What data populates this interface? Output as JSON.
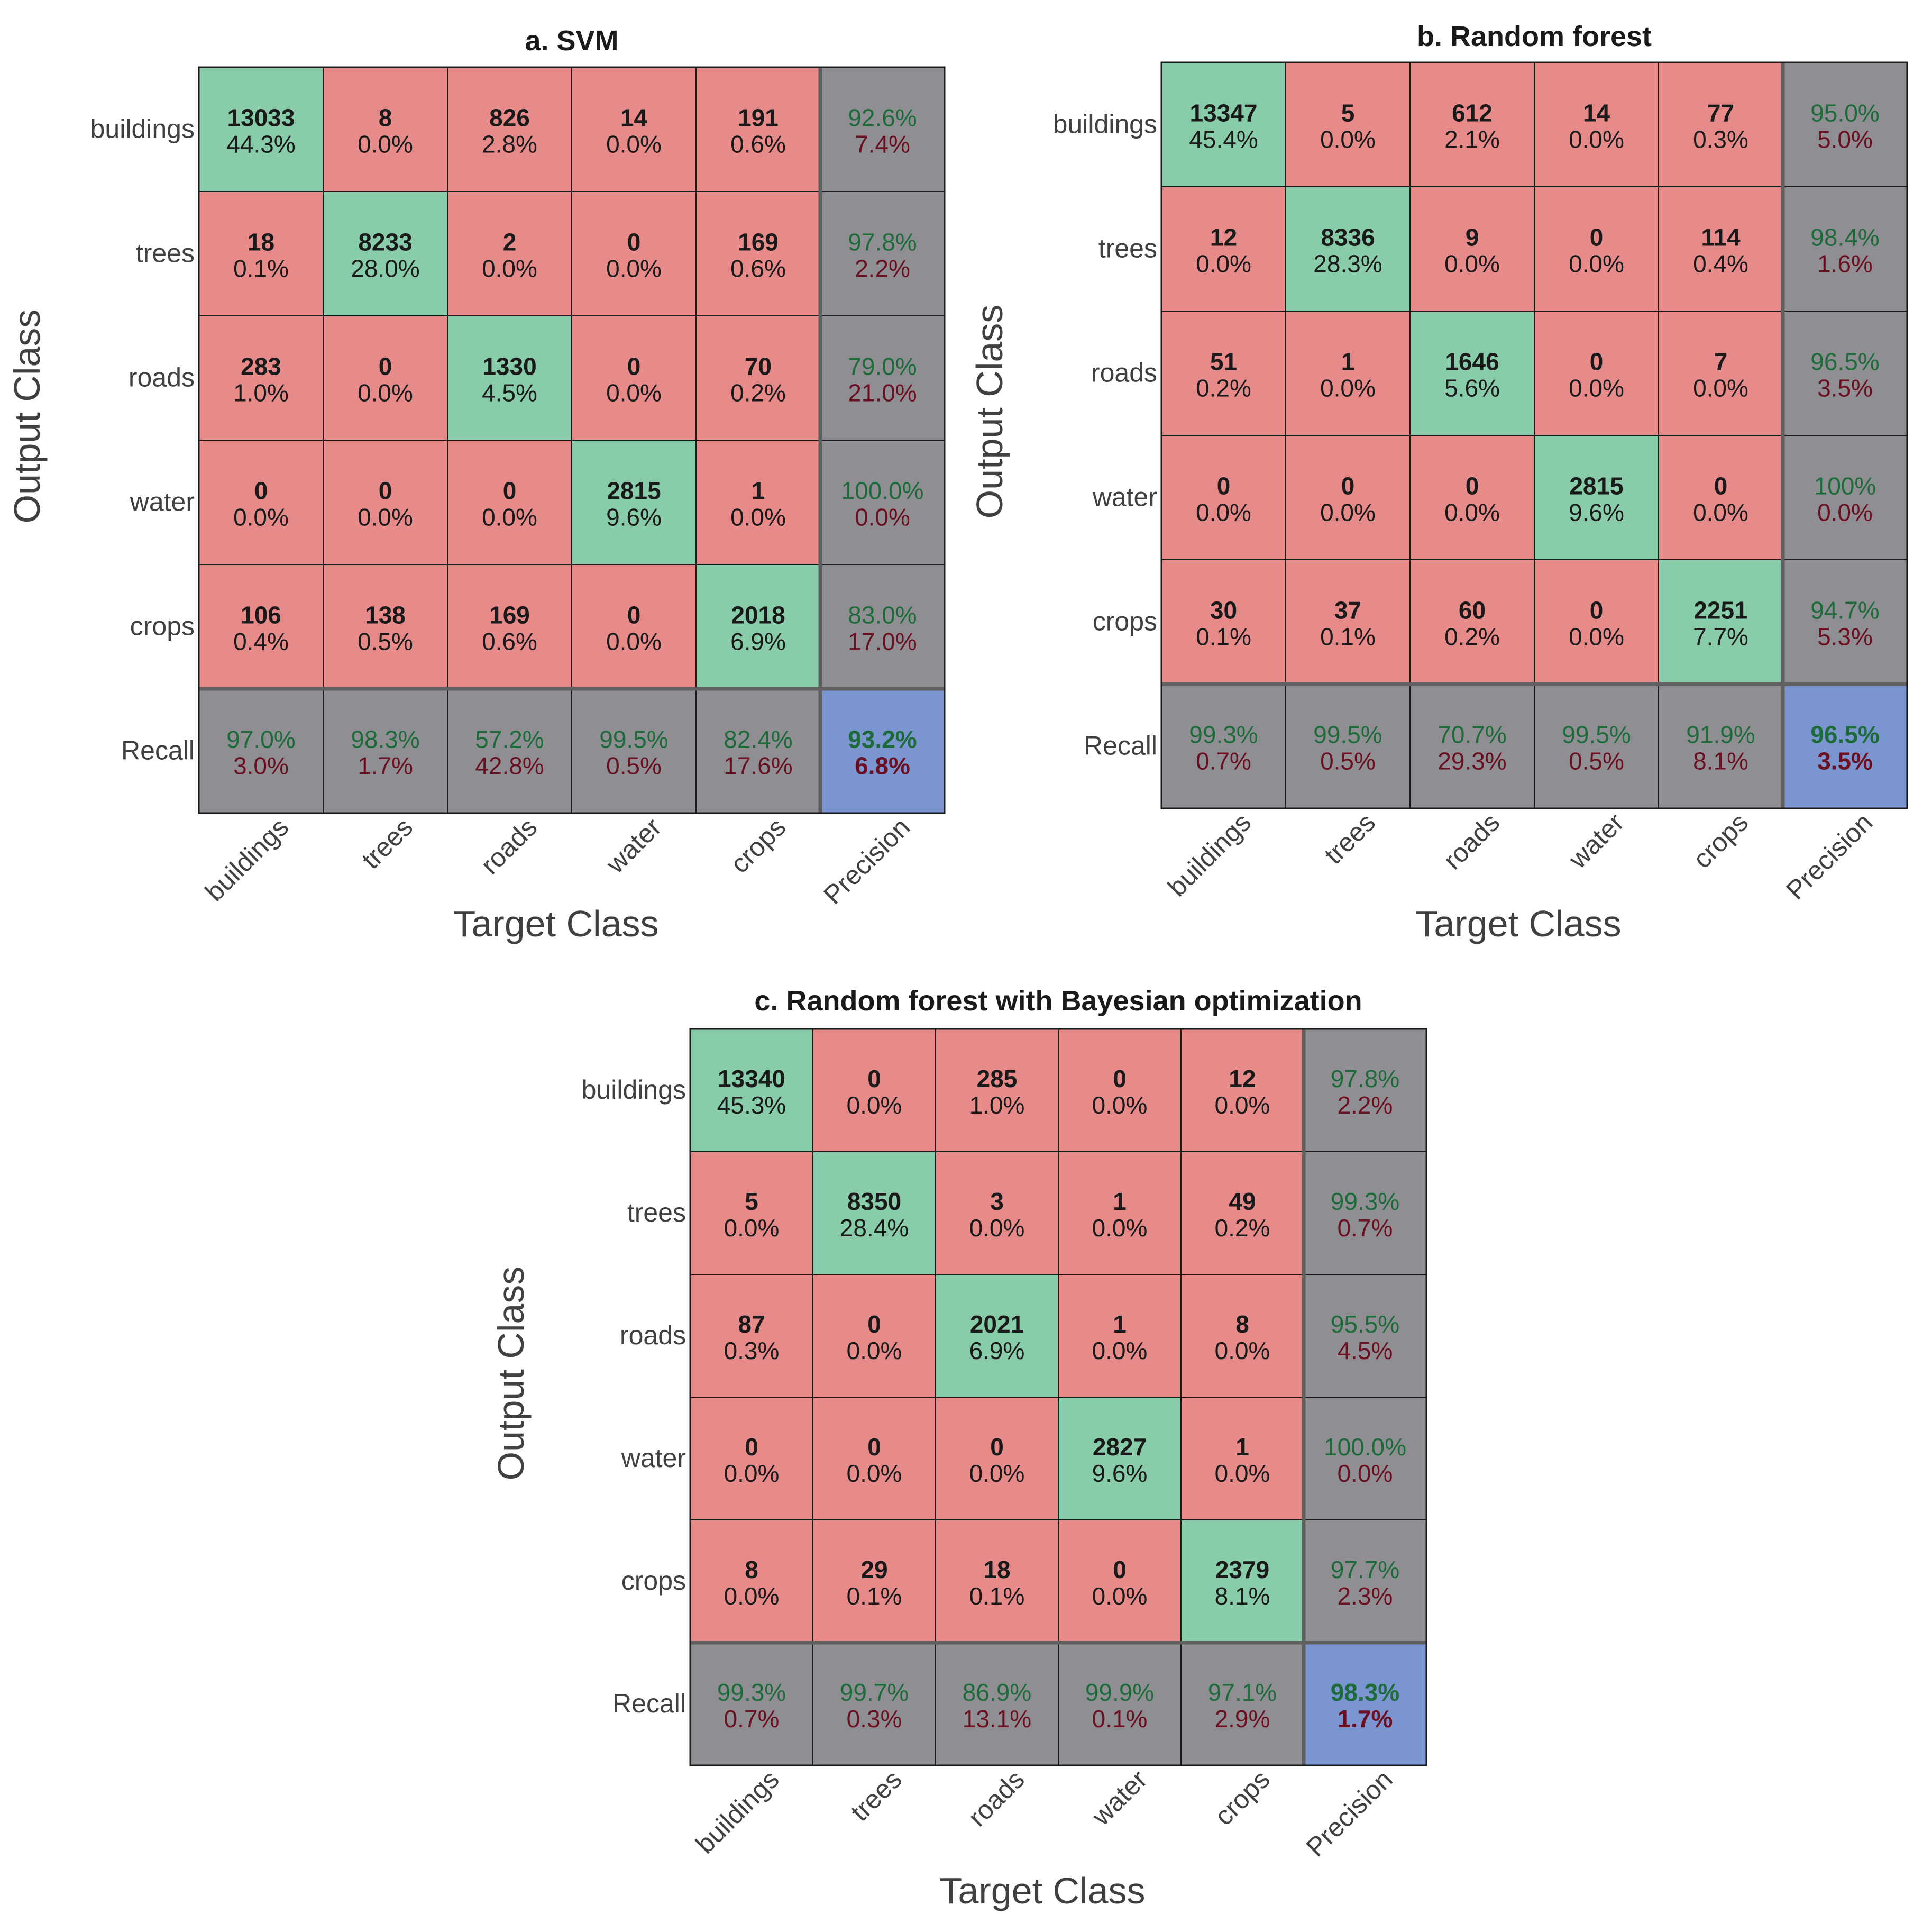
{
  "colors": {
    "correct": "#88CCAA",
    "incorrect": "#E68A8A",
    "summary": "#8E8E93",
    "overall": "#7B95D0",
    "grid": "#1a1a1a",
    "separator": "#606060",
    "good_text": "#1e6b3a",
    "bad_text": "#6b1020"
  },
  "chart_data": [
    {
      "type": "table",
      "title": "a.  SVM",
      "xlabel": "Target Class",
      "ylabel": "Output Class",
      "x_ticks": [
        "buildings",
        "trees",
        "roads",
        "water",
        "crops",
        "Precision"
      ],
      "y_ticks": [
        "buildings",
        "trees",
        "roads",
        "water",
        "crops",
        "Recall"
      ],
      "counts": [
        [
          13033,
          8,
          826,
          14,
          191
        ],
        [
          18,
          8233,
          2,
          0,
          169
        ],
        [
          283,
          0,
          1330,
          0,
          70
        ],
        [
          0,
          0,
          0,
          2815,
          1
        ],
        [
          106,
          138,
          169,
          0,
          2018
        ]
      ],
      "percents": [
        [
          "44.3%",
          "0.0%",
          "2.8%",
          "0.0%",
          "0.6%"
        ],
        [
          "0.1%",
          "28.0%",
          "0.0%",
          "0.0%",
          "0.6%"
        ],
        [
          "1.0%",
          "0.0%",
          "4.5%",
          "0.0%",
          "0.2%"
        ],
        [
          "0.0%",
          "0.0%",
          "0.0%",
          "9.6%",
          "0.0%"
        ],
        [
          "0.4%",
          "0.5%",
          "0.6%",
          "0.0%",
          "6.9%"
        ]
      ],
      "precision": [
        [
          "92.6%",
          "7.4%"
        ],
        [
          "97.8%",
          "2.2%"
        ],
        [
          "79.0%",
          "21.0%"
        ],
        [
          "100.0%",
          "0.0%"
        ],
        [
          "83.0%",
          "17.0%"
        ]
      ],
      "recall": [
        [
          "97.0%",
          "3.0%"
        ],
        [
          "98.3%",
          "1.7%"
        ],
        [
          "57.2%",
          "42.8%"
        ],
        [
          "99.5%",
          "0.5%"
        ],
        [
          "82.4%",
          "17.6%"
        ]
      ],
      "overall": [
        "93.2%",
        "6.8%"
      ]
    },
    {
      "type": "table",
      "title": "b. Random forest",
      "xlabel": "Target Class",
      "ylabel": "Output Class",
      "x_ticks": [
        "buildings",
        "trees",
        "roads",
        "water",
        "crops",
        "Precision"
      ],
      "y_ticks": [
        "buildings",
        "trees",
        "roads",
        "water",
        "crops",
        "Recall"
      ],
      "counts": [
        [
          13347,
          5,
          612,
          14,
          77
        ],
        [
          12,
          8336,
          9,
          0,
          114
        ],
        [
          51,
          1,
          1646,
          0,
          7
        ],
        [
          0,
          0,
          0,
          2815,
          0
        ],
        [
          30,
          37,
          60,
          0,
          2251
        ]
      ],
      "percents": [
        [
          "45.4%",
          "0.0%",
          "2.1%",
          "0.0%",
          "0.3%"
        ],
        [
          "0.0%",
          "28.3%",
          "0.0%",
          "0.0%",
          "0.4%"
        ],
        [
          "0.2%",
          "0.0%",
          "5.6%",
          "0.0%",
          "0.0%"
        ],
        [
          "0.0%",
          "0.0%",
          "0.0%",
          "9.6%",
          "0.0%"
        ],
        [
          "0.1%",
          "0.1%",
          "0.2%",
          "0.0%",
          "7.7%"
        ]
      ],
      "precision": [
        [
          "95.0%",
          "5.0%"
        ],
        [
          "98.4%",
          "1.6%"
        ],
        [
          "96.5%",
          "3.5%"
        ],
        [
          "100%",
          "0.0%"
        ],
        [
          "94.7%",
          "5.3%"
        ]
      ],
      "recall": [
        [
          "99.3%",
          "0.7%"
        ],
        [
          "99.5%",
          "0.5%"
        ],
        [
          "70.7%",
          "29.3%"
        ],
        [
          "99.5%",
          "0.5%"
        ],
        [
          "91.9%",
          "8.1%"
        ]
      ],
      "overall": [
        "96.5%",
        "3.5%"
      ]
    },
    {
      "type": "table",
      "title": "c. Random forest with Bayesian optimization",
      "xlabel": "Target Class",
      "ylabel": "Output Class",
      "x_ticks": [
        "buildings",
        "trees",
        "roads",
        "water",
        "crops",
        "Precision"
      ],
      "y_ticks": [
        "buildings",
        "trees",
        "roads",
        "water",
        "crops",
        "Recall"
      ],
      "counts": [
        [
          13340,
          0,
          285,
          0,
          12
        ],
        [
          5,
          8350,
          3,
          1,
          49
        ],
        [
          87,
          0,
          2021,
          1,
          8
        ],
        [
          0,
          0,
          0,
          2827,
          1
        ],
        [
          8,
          29,
          18,
          0,
          2379
        ]
      ],
      "percents": [
        [
          "45.3%",
          "0.0%",
          "1.0%",
          "0.0%",
          "0.0%"
        ],
        [
          "0.0%",
          "28.4%",
          "0.0%",
          "0.0%",
          "0.2%"
        ],
        [
          "0.3%",
          "0.0%",
          "6.9%",
          "0.0%",
          "0.0%"
        ],
        [
          "0.0%",
          "0.0%",
          "0.0%",
          "9.6%",
          "0.0%"
        ],
        [
          "0.0%",
          "0.1%",
          "0.1%",
          "0.0%",
          "8.1%"
        ]
      ],
      "precision": [
        [
          "97.8%",
          "2.2%"
        ],
        [
          "99.3%",
          "0.7%"
        ],
        [
          "95.5%",
          "4.5%"
        ],
        [
          "100.0%",
          "0.0%"
        ],
        [
          "97.7%",
          "2.3%"
        ]
      ],
      "recall": [
        [
          "99.3%",
          "0.7%"
        ],
        [
          "99.7%",
          "0.3%"
        ],
        [
          "86.9%",
          "13.1%"
        ],
        [
          "99.9%",
          "0.1%"
        ],
        [
          "97.1%",
          "2.9%"
        ]
      ],
      "overall": [
        "98.3%",
        "1.7%"
      ]
    }
  ]
}
